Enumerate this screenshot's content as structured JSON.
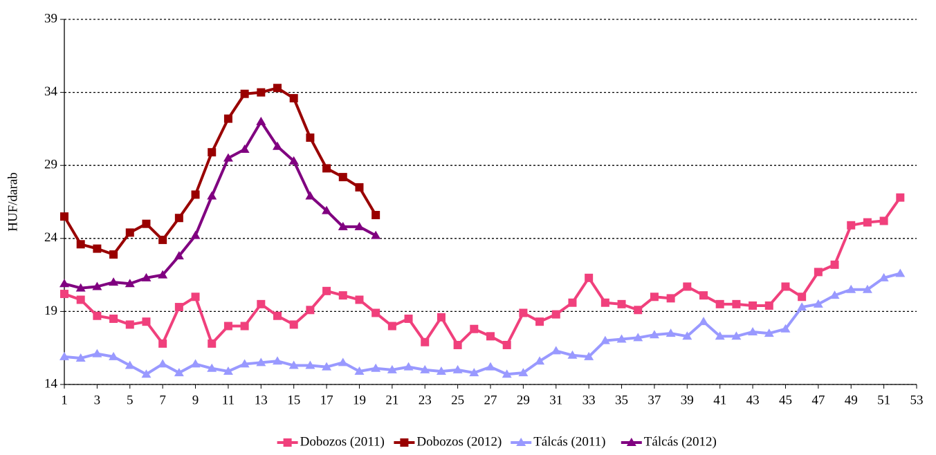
{
  "chart_data": {
    "type": "line",
    "y_label": "HUF/darab",
    "x": [
      1,
      2,
      3,
      4,
      5,
      6,
      7,
      8,
      9,
      10,
      11,
      12,
      13,
      14,
      15,
      16,
      17,
      18,
      19,
      20,
      21,
      22,
      23,
      24,
      25,
      26,
      27,
      28,
      29,
      30,
      31,
      32,
      33,
      34,
      35,
      36,
      37,
      38,
      39,
      40,
      41,
      42,
      43,
      44,
      45,
      46,
      47,
      48,
      49,
      50,
      51,
      52
    ],
    "xlim": [
      1,
      53
    ],
    "xticks": [
      1,
      3,
      5,
      7,
      9,
      11,
      13,
      15,
      17,
      19,
      21,
      23,
      25,
      27,
      29,
      31,
      33,
      35,
      37,
      39,
      41,
      43,
      45,
      47,
      49,
      51,
      53
    ],
    "ylim": [
      14,
      39
    ],
    "yticks": [
      14,
      19,
      24,
      29,
      34,
      39
    ],
    "grid": true,
    "legend": "bottom",
    "series": [
      {
        "name": "Dobozos (2011)",
        "color": "#f0407c",
        "marker": "square",
        "values": [
          20.2,
          19.8,
          18.7,
          18.5,
          18.1,
          18.3,
          16.8,
          19.3,
          20.0,
          16.8,
          18.0,
          18.0,
          19.5,
          18.7,
          18.1,
          19.1,
          20.4,
          20.1,
          19.8,
          18.9,
          18.0,
          18.5,
          16.9,
          18.6,
          16.7,
          17.8,
          17.3,
          16.7,
          18.9,
          18.3,
          18.8,
          19.6,
          21.3,
          19.6,
          19.5,
          19.1,
          20.0,
          19.9,
          20.7,
          20.1,
          19.5,
          19.5,
          19.4,
          19.4,
          20.7,
          20.0,
          21.7,
          22.2,
          24.9,
          25.1,
          25.2,
          26.8
        ]
      },
      {
        "name": "Dobozos (2012)",
        "color": "#990000",
        "marker": "square",
        "values": [
          25.5,
          23.6,
          23.3,
          22.9,
          24.4,
          25.0,
          23.9,
          25.4,
          27.0,
          29.9,
          32.2,
          33.9,
          34.0,
          34.3,
          33.6,
          30.9,
          28.8,
          28.2,
          27.5,
          25.6,
          null,
          null,
          null,
          null,
          null,
          null,
          null,
          null,
          null,
          null,
          null,
          null,
          null,
          null,
          null,
          null,
          null,
          null,
          null,
          null,
          null,
          null,
          null,
          null,
          null,
          null,
          null,
          null,
          null,
          null,
          null,
          null
        ]
      },
      {
        "name": "Tálcás (2011)",
        "color": "#9999ff",
        "marker": "triangle",
        "values": [
          15.9,
          15.8,
          16.1,
          15.9,
          15.3,
          14.7,
          15.4,
          14.8,
          15.4,
          15.1,
          14.9,
          15.4,
          15.5,
          15.6,
          15.3,
          15.3,
          15.2,
          15.5,
          14.9,
          15.1,
          15.0,
          15.2,
          15.0,
          14.9,
          15.0,
          14.8,
          15.2,
          14.7,
          14.8,
          15.6,
          16.3,
          16.0,
          15.9,
          17.0,
          17.1,
          17.2,
          17.4,
          17.5,
          17.3,
          18.3,
          17.3,
          17.3,
          17.6,
          17.5,
          17.8,
          19.3,
          19.5,
          20.1,
          20.5,
          20.5,
          21.3,
          21.6
        ]
      },
      {
        "name": "Tálcás (2012)",
        "color": "#800080",
        "marker": "triangle",
        "values": [
          20.9,
          20.6,
          20.7,
          21.0,
          20.9,
          21.3,
          21.5,
          22.8,
          24.2,
          26.9,
          29.5,
          30.1,
          32.0,
          30.3,
          29.3,
          26.9,
          25.9,
          24.8,
          24.8,
          24.2,
          null,
          null,
          null,
          null,
          null,
          null,
          null,
          null,
          null,
          null,
          null,
          null,
          null,
          null,
          null,
          null,
          null,
          null,
          null,
          null,
          null,
          null,
          null,
          null,
          null,
          null,
          null,
          null,
          null,
          null,
          null,
          null
        ]
      }
    ]
  }
}
